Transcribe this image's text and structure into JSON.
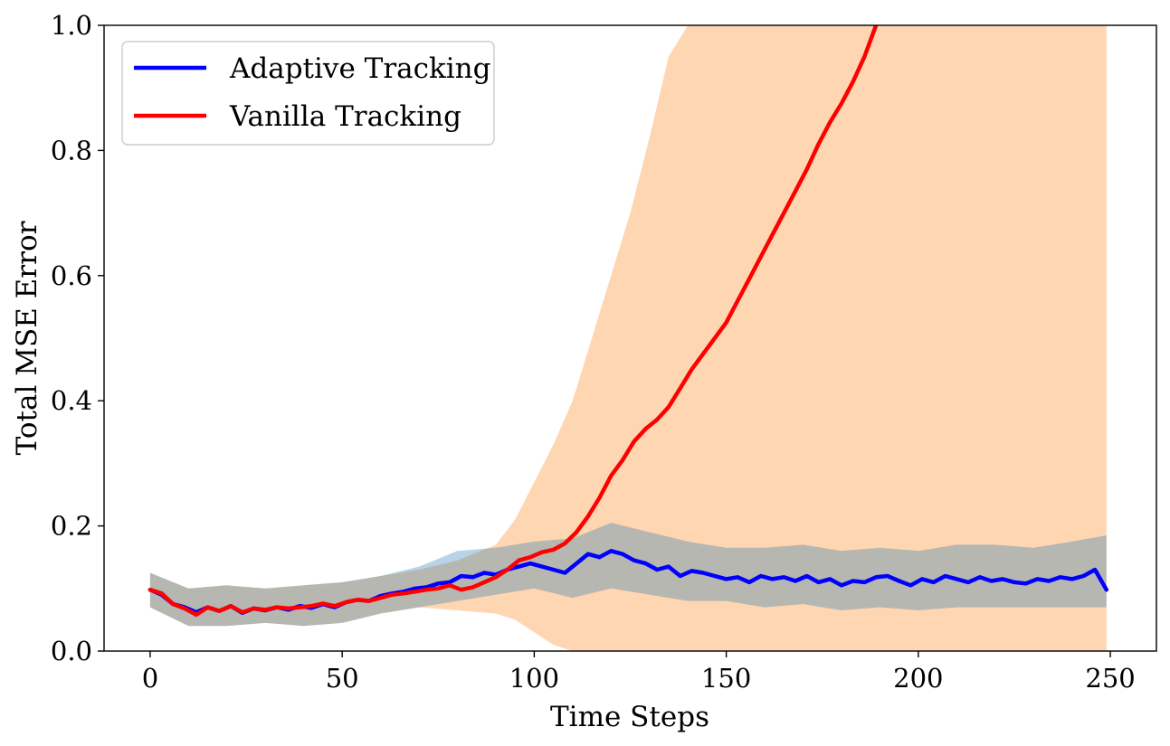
{
  "chart_data": {
    "type": "line",
    "title": "",
    "xlabel": "Time Steps",
    "ylabel": "Total MSE Error",
    "xlim": [
      -12,
      262
    ],
    "ylim": [
      0.0,
      1.0
    ],
    "xticks": [
      0,
      50,
      100,
      150,
      200,
      250
    ],
    "xtick_labels": [
      "0",
      "50",
      "100",
      "150",
      "200",
      "250"
    ],
    "yticks": [
      0.0,
      0.2,
      0.4,
      0.6,
      0.8,
      1.0
    ],
    "ytick_labels": [
      "0.0",
      "0.2",
      "0.4",
      "0.6",
      "0.8",
      "1.0"
    ],
    "grid": false,
    "legend_position": "top-left",
    "colors": {
      "adaptive": "#0000ff",
      "vanilla": "#ff0000",
      "adaptive_band": "#1f77b4",
      "vanilla_band": "#ff7f0e"
    },
    "series": [
      {
        "name": "Adaptive Tracking",
        "color": "#0000ff",
        "x": [
          0,
          3,
          6,
          9,
          12,
          15,
          18,
          21,
          24,
          27,
          30,
          33,
          36,
          39,
          42,
          45,
          48,
          51,
          54,
          57,
          60,
          63,
          66,
          69,
          72,
          75,
          78,
          81,
          84,
          87,
          90,
          93,
          96,
          99,
          102,
          105,
          108,
          111,
          114,
          117,
          120,
          123,
          126,
          129,
          132,
          135,
          138,
          141,
          144,
          147,
          150,
          153,
          156,
          159,
          162,
          165,
          168,
          171,
          174,
          177,
          180,
          183,
          186,
          189,
          192,
          195,
          198,
          201,
          204,
          207,
          210,
          213,
          216,
          219,
          222,
          225,
          228,
          231,
          234,
          237,
          240,
          243,
          246,
          249
        ],
        "values": [
          0.098,
          0.09,
          0.075,
          0.07,
          0.062,
          0.07,
          0.064,
          0.072,
          0.061,
          0.068,
          0.065,
          0.07,
          0.066,
          0.072,
          0.069,
          0.075,
          0.07,
          0.078,
          0.082,
          0.08,
          0.088,
          0.092,
          0.095,
          0.1,
          0.102,
          0.108,
          0.11,
          0.12,
          0.118,
          0.125,
          0.122,
          0.13,
          0.135,
          0.14,
          0.135,
          0.13,
          0.125,
          0.14,
          0.155,
          0.15,
          0.16,
          0.155,
          0.145,
          0.14,
          0.13,
          0.135,
          0.12,
          0.128,
          0.125,
          0.12,
          0.115,
          0.118,
          0.11,
          0.12,
          0.115,
          0.118,
          0.112,
          0.12,
          0.11,
          0.115,
          0.105,
          0.112,
          0.11,
          0.118,
          0.12,
          0.112,
          0.105,
          0.115,
          0.11,
          0.12,
          0.115,
          0.11,
          0.118,
          0.112,
          0.115,
          0.11,
          0.108,
          0.115,
          0.112,
          0.118,
          0.115,
          0.12,
          0.13,
          0.098
        ]
      },
      {
        "name": "Vanilla Tracking",
        "color": "#ff0000",
        "x": [
          0,
          3,
          6,
          9,
          12,
          15,
          18,
          21,
          24,
          27,
          30,
          33,
          36,
          39,
          42,
          45,
          48,
          51,
          54,
          57,
          60,
          63,
          66,
          69,
          72,
          75,
          78,
          81,
          84,
          87,
          90,
          93,
          96,
          99,
          102,
          105,
          108,
          111,
          114,
          117,
          120,
          123,
          126,
          129,
          132,
          135,
          138,
          141,
          144,
          147,
          150,
          153,
          156,
          159,
          162,
          165,
          168,
          171,
          174,
          177,
          180,
          183,
          186,
          189
        ],
        "values": [
          0.098,
          0.092,
          0.075,
          0.068,
          0.058,
          0.07,
          0.064,
          0.072,
          0.062,
          0.068,
          0.066,
          0.07,
          0.068,
          0.07,
          0.072,
          0.076,
          0.072,
          0.078,
          0.082,
          0.08,
          0.085,
          0.09,
          0.092,
          0.095,
          0.098,
          0.1,
          0.105,
          0.098,
          0.102,
          0.11,
          0.118,
          0.13,
          0.145,
          0.15,
          0.158,
          0.162,
          0.172,
          0.19,
          0.215,
          0.245,
          0.28,
          0.305,
          0.335,
          0.355,
          0.37,
          0.39,
          0.42,
          0.45,
          0.475,
          0.5,
          0.525,
          0.56,
          0.595,
          0.63,
          0.665,
          0.7,
          0.735,
          0.77,
          0.81,
          0.845,
          0.875,
          0.91,
          0.95,
          1.0
        ]
      }
    ],
    "bands": [
      {
        "name": "adaptive_std",
        "color": "#1f77b4",
        "opacity": 0.32,
        "x": [
          0,
          10,
          20,
          30,
          40,
          50,
          60,
          70,
          80,
          90,
          100,
          110,
          120,
          130,
          140,
          150,
          160,
          170,
          180,
          190,
          200,
          210,
          220,
          230,
          240,
          249
        ],
        "lower": [
          0.07,
          0.04,
          0.04,
          0.045,
          0.04,
          0.045,
          0.06,
          0.07,
          0.08,
          0.09,
          0.1,
          0.085,
          0.1,
          0.09,
          0.08,
          0.08,
          0.07,
          0.075,
          0.065,
          0.07,
          0.065,
          0.07,
          0.07,
          0.07,
          0.07,
          0.07
        ],
        "upper": [
          0.125,
          0.1,
          0.105,
          0.1,
          0.105,
          0.11,
          0.12,
          0.135,
          0.16,
          0.165,
          0.175,
          0.18,
          0.205,
          0.19,
          0.175,
          0.165,
          0.165,
          0.17,
          0.16,
          0.165,
          0.16,
          0.17,
          0.17,
          0.165,
          0.175,
          0.185
        ]
      },
      {
        "name": "vanilla_std",
        "color": "#ff7f0e",
        "opacity": 0.32,
        "x": [
          0,
          10,
          20,
          30,
          40,
          50,
          60,
          70,
          80,
          90,
          95,
          100,
          105,
          110,
          115,
          120,
          125,
          130,
          135,
          140,
          145,
          150,
          160,
          170,
          180,
          190,
          200,
          210,
          220,
          230,
          240,
          249
        ],
        "lower": [
          0.07,
          0.04,
          0.04,
          0.045,
          0.04,
          0.045,
          0.06,
          0.07,
          0.065,
          0.06,
          0.05,
          0.03,
          0.01,
          0.0,
          0.0,
          0.0,
          0.0,
          0.0,
          0.0,
          0.0,
          0.0,
          0.0,
          0.0,
          0.0,
          0.0,
          0.0,
          0.0,
          0.0,
          0.0,
          0.0,
          0.0,
          0.0
        ],
        "upper": [
          0.125,
          0.1,
          0.105,
          0.1,
          0.105,
          0.11,
          0.12,
          0.13,
          0.145,
          0.17,
          0.21,
          0.27,
          0.33,
          0.4,
          0.5,
          0.6,
          0.7,
          0.82,
          0.95,
          1.0,
          1.0,
          1.0,
          1.0,
          1.0,
          1.0,
          1.0,
          1.0,
          1.0,
          1.0,
          1.0,
          1.0,
          1.0
        ]
      }
    ]
  }
}
